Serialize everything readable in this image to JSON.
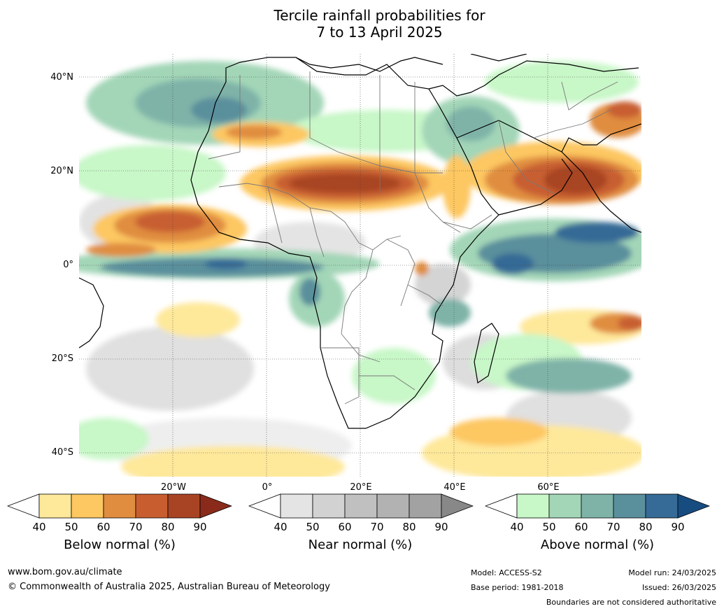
{
  "title": {
    "line1": "Tercile rainfall probabilities for",
    "line2": "7 to 13 April 2025"
  },
  "map": {
    "lat_labels": [
      "40°N",
      "20°N",
      "0°",
      "20°S",
      "40°S"
    ],
    "lon_labels": [
      "20°W",
      "0°",
      "20°E",
      "40°E",
      "60°E"
    ]
  },
  "colorbars": [
    {
      "label": "Below normal (%)",
      "ticks": [
        "40",
        "50",
        "60",
        "70",
        "80",
        "90"
      ],
      "colors": [
        "#ffffff",
        "#fee89a",
        "#fdc762",
        "#e08d40",
        "#c85e30",
        "#a84424",
        "#8a2a1a"
      ]
    },
    {
      "label": "Near normal (%)",
      "ticks": [
        "40",
        "50",
        "60",
        "70",
        "80",
        "90"
      ],
      "colors": [
        "#ffffff",
        "#e4e4e4",
        "#d2d2d2",
        "#c0c0c0",
        "#b2b2b2",
        "#a2a2a2",
        "#888888"
      ]
    },
    {
      "label": "Above normal (%)",
      "ticks": [
        "40",
        "50",
        "60",
        "70",
        "80",
        "90"
      ],
      "colors": [
        "#ffffff",
        "#c8f7c8",
        "#a3d6b7",
        "#7fb3a8",
        "#5a8f9c",
        "#356b96",
        "#174c80"
      ]
    }
  ],
  "footer": {
    "website": "www.bom.gov.au/climate",
    "copyright": "© Commonwealth of Australia 2025, Australian Bureau of Meteorology",
    "model": "Model: ACCESS-S2",
    "base_period": "Base period: 1981-2018",
    "model_run": "Model run: 24/03/2025",
    "issued": "Issued: 26/03/2025",
    "disclaimer": "Boundaries are not considered authoritative"
  }
}
